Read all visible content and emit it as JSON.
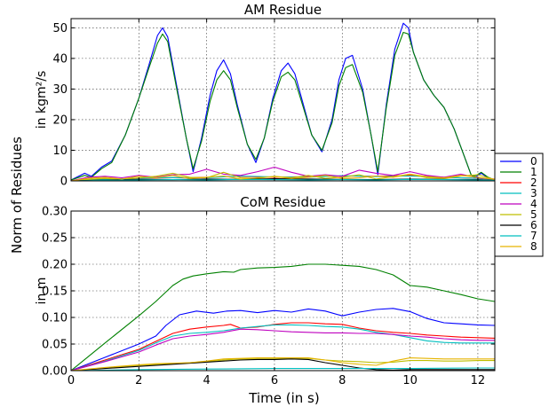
{
  "figure": {
    "ylabel_shared": "Norm of Residues",
    "xlabel": "Time (in s)"
  },
  "chart_data": [
    {
      "type": "line",
      "title": "AM Residue",
      "ylabel": "in kgm²/s",
      "xlim": [
        0,
        12.5
      ],
      "ylim": [
        0,
        53
      ],
      "xticks": [
        0,
        2,
        4,
        6,
        8,
        10,
        12
      ],
      "xtick_labels": [
        "",
        "",
        "",
        "",
        "",
        "",
        ""
      ],
      "yticks": [
        0,
        10,
        20,
        30,
        40,
        50
      ],
      "ytick_labels": [
        "0",
        "10",
        "20",
        "30",
        "40",
        "50"
      ],
      "grid": true,
      "series": [
        {
          "name": "0",
          "color": "#0000ff",
          "x": [
            0,
            0.4,
            0.6,
            0.9,
            1.2,
            1.6,
            2.0,
            2.3,
            2.55,
            2.7,
            2.85,
            3.1,
            3.4,
            3.6,
            3.85,
            4.1,
            4.3,
            4.5,
            4.7,
            4.9,
            5.2,
            5.45,
            5.7,
            5.95,
            6.2,
            6.4,
            6.6,
            6.85,
            7.1,
            7.4,
            7.7,
            7.9,
            8.1,
            8.3,
            8.6,
            8.85,
            9.05,
            9.3,
            9.55,
            9.8,
            9.95,
            10.1,
            10.4,
            10.7,
            11.0,
            11.3,
            11.6,
            11.8,
            11.9,
            12.1,
            12.3,
            12.5
          ],
          "y": [
            0.3,
            2.5,
            1.5,
            4.5,
            6.5,
            15,
            27,
            38,
            47.5,
            50,
            47,
            32,
            14,
            3,
            14,
            28,
            36,
            39.5,
            35,
            25,
            12,
            6,
            14,
            27,
            36,
            38.5,
            35,
            25,
            15,
            9.5,
            20,
            33,
            40,
            41,
            30,
            15,
            2,
            25,
            43,
            51.5,
            50,
            42,
            33,
            28,
            24,
            17,
            8,
            2,
            1,
            2.5,
            1,
            0.3
          ]
        },
        {
          "name": "1",
          "color": "#008000",
          "x": [
            0,
            0.4,
            0.6,
            0.9,
            1.2,
            1.6,
            2.0,
            2.3,
            2.55,
            2.7,
            2.85,
            3.1,
            3.4,
            3.6,
            3.85,
            4.1,
            4.3,
            4.5,
            4.7,
            4.9,
            5.2,
            5.45,
            5.7,
            5.95,
            6.2,
            6.4,
            6.6,
            6.85,
            7.1,
            7.4,
            7.7,
            7.9,
            8.1,
            8.3,
            8.6,
            8.85,
            9.05,
            9.3,
            9.55,
            9.8,
            9.95,
            10.1,
            10.4,
            10.7,
            11.0,
            11.3,
            11.6,
            11.8,
            11.9,
            12.1,
            12.3,
            12.5
          ],
          "y": [
            0.3,
            1.8,
            1.2,
            4.0,
            6.0,
            15,
            27,
            37,
            45,
            48,
            45.5,
            31,
            14,
            4,
            13,
            26,
            33,
            36,
            33,
            24,
            12,
            7,
            14,
            26,
            34,
            35.5,
            33,
            24,
            15,
            10,
            19,
            31,
            37,
            38,
            29,
            15,
            3,
            24,
            41,
            48.5,
            48,
            42,
            33,
            28,
            24,
            17,
            8,
            2,
            1.5,
            2.8,
            1.2,
            0.3
          ]
        },
        {
          "name": "2",
          "color": "#ff0000",
          "x": [
            0,
            1,
            2,
            3,
            4,
            5,
            6,
            7,
            8,
            9,
            10,
            11,
            12,
            12.5
          ],
          "y": [
            0,
            0.6,
            0.8,
            1.0,
            1.2,
            1.5,
            1.2,
            1.4,
            1.6,
            1.5,
            1.8,
            1.2,
            0.8,
            0.6
          ]
        },
        {
          "name": "3",
          "color": "#00bfbf",
          "x": [
            0,
            1,
            2,
            3,
            4,
            5,
            6,
            7,
            8,
            9,
            10,
            11,
            12,
            12.5
          ],
          "y": [
            0,
            0.5,
            0.9,
            1.1,
            1.0,
            1.6,
            1.3,
            1.2,
            1.7,
            1.4,
            1.6,
            1.1,
            0.9,
            0.5
          ]
        },
        {
          "name": "4",
          "color": "#bf00bf",
          "x": [
            0,
            0.5,
            1,
            1.5,
            2,
            2.5,
            3,
            3.5,
            4,
            4.5,
            5,
            5.5,
            6,
            6.5,
            7,
            7.5,
            8,
            8.5,
            9,
            9.5,
            10,
            10.5,
            11,
            11.5,
            12,
            12.5
          ],
          "y": [
            0,
            1.2,
            1.5,
            1.0,
            1.8,
            1.2,
            2.0,
            2.2,
            3.8,
            2.2,
            1.8,
            3.0,
            4.5,
            2.8,
            1.5,
            2.0,
            1.5,
            3.5,
            2.5,
            1.8,
            3.0,
            1.8,
            1.2,
            2.2,
            1.0,
            0.5
          ]
        },
        {
          "name": "5",
          "color": "#bfbf00",
          "x": [
            0,
            0.5,
            1,
            1.5,
            2,
            2.5,
            3,
            3.5,
            4,
            4.5,
            5,
            5.5,
            6,
            6.5,
            7,
            7.5,
            8,
            8.5,
            9,
            9.5,
            10,
            10.5,
            11,
            11.5,
            12,
            12.5
          ],
          "y": [
            0,
            0.5,
            0.8,
            0.4,
            1.0,
            1.5,
            2.5,
            1.2,
            1.0,
            2.8,
            1.0,
            0.8,
            1.5,
            1.0,
            1.8,
            0.8,
            1.2,
            2.0,
            0.6,
            1.4,
            2.2,
            1.0,
            0.8,
            1.6,
            2.0,
            0.4
          ]
        },
        {
          "name": "6",
          "color": "#000000",
          "x": [
            0,
            1,
            2,
            3,
            4,
            5,
            6,
            7,
            8,
            9,
            10,
            11,
            12,
            12.5
          ],
          "y": [
            0,
            0.3,
            0.5,
            0.4,
            0.6,
            0.5,
            0.7,
            0.6,
            0.5,
            0.4,
            0.6,
            0.5,
            0.4,
            0.3
          ]
        },
        {
          "name": "7",
          "color": "#00bfbf",
          "x": [
            0,
            1,
            2,
            3,
            4,
            5,
            6,
            7,
            8,
            9,
            10,
            11,
            12,
            12.5
          ],
          "y": [
            0,
            0.2,
            0.3,
            0.4,
            0.3,
            0.5,
            0.4,
            0.3,
            0.4,
            0.3,
            0.5,
            0.4,
            0.3,
            0.2
          ]
        },
        {
          "name": "8",
          "color": "#e6b400",
          "x": [
            0,
            0.5,
            1,
            1.5,
            2,
            2.5,
            3,
            3.5,
            4,
            4.5,
            5,
            5.5,
            6,
            6.5,
            7,
            7.5,
            8,
            8.5,
            9,
            9.5,
            10,
            10.5,
            11,
            11.5,
            12,
            12.5
          ],
          "y": [
            0,
            0.8,
            1.2,
            0.6,
            1.5,
            1.0,
            1.8,
            0.8,
            1.2,
            1.6,
            0.6,
            1.0,
            1.4,
            0.8,
            1.2,
            1.8,
            0.8,
            1.0,
            1.6,
            1.2,
            2.2,
            1.4,
            1.0,
            1.8,
            1.2,
            0.5
          ]
        }
      ]
    },
    {
      "type": "line",
      "title": "CoM Residue",
      "ylabel": "in m",
      "xlim": [
        0,
        12.5
      ],
      "ylim": [
        0,
        0.3
      ],
      "xticks": [
        0,
        2,
        4,
        6,
        8,
        10,
        12
      ],
      "xtick_labels": [
        "0",
        "2",
        "4",
        "6",
        "8",
        "10",
        "12"
      ],
      "yticks": [
        0,
        0.05,
        0.1,
        0.15,
        0.2,
        0.25,
        0.3
      ],
      "ytick_labels": [
        "0.00",
        "0.05",
        "0.10",
        "0.15",
        "0.20",
        "0.25",
        "0.30"
      ],
      "grid": true,
      "series": [
        {
          "name": "0",
          "color": "#0000ff",
          "x": [
            0,
            1,
            2,
            2.5,
            2.8,
            3.2,
            3.7,
            4.2,
            4.6,
            5,
            5.5,
            6,
            6.5,
            7,
            7.5,
            8,
            8.5,
            9,
            9.5,
            10,
            10.5,
            11,
            11.5,
            12,
            12.5
          ],
          "y": [
            0,
            0.025,
            0.05,
            0.065,
            0.085,
            0.105,
            0.112,
            0.108,
            0.112,
            0.113,
            0.109,
            0.113,
            0.11,
            0.116,
            0.112,
            0.103,
            0.11,
            0.115,
            0.117,
            0.111,
            0.098,
            0.09,
            0.088,
            0.086,
            0.085
          ]
        },
        {
          "name": "1",
          "color": "#008000",
          "x": [
            0,
            1,
            2,
            2.5,
            3,
            3.3,
            3.6,
            4,
            4.5,
            4.8,
            5,
            5.5,
            6,
            6.5,
            7,
            7.5,
            8,
            8.5,
            9,
            9.5,
            10,
            10.5,
            11,
            11.5,
            12,
            12.5
          ],
          "y": [
            0,
            0.052,
            0.103,
            0.13,
            0.16,
            0.172,
            0.178,
            0.182,
            0.186,
            0.185,
            0.19,
            0.193,
            0.194,
            0.196,
            0.2,
            0.2,
            0.198,
            0.196,
            0.19,
            0.18,
            0.16,
            0.157,
            0.15,
            0.143,
            0.135,
            0.13
          ]
        },
        {
          "name": "2",
          "color": "#ff0000",
          "x": [
            0,
            1,
            2,
            2.5,
            3,
            3.5,
            4,
            4.5,
            4.7,
            5,
            5.5,
            6,
            6.5,
            7,
            7.5,
            8,
            8.5,
            9,
            9.5,
            10,
            10.5,
            11,
            11.5,
            12,
            12.5
          ],
          "y": [
            0,
            0.02,
            0.04,
            0.055,
            0.07,
            0.078,
            0.082,
            0.085,
            0.087,
            0.08,
            0.082,
            0.087,
            0.09,
            0.09,
            0.088,
            0.087,
            0.08,
            0.075,
            0.072,
            0.07,
            0.067,
            0.065,
            0.063,
            0.062,
            0.061
          ]
        },
        {
          "name": "3",
          "color": "#00bfbf",
          "x": [
            0,
            1,
            2,
            2.5,
            3,
            3.5,
            4,
            4.5,
            5,
            5.5,
            6,
            6.5,
            7,
            7.5,
            8,
            8.5,
            9,
            9.5,
            10,
            10.5,
            11,
            11.5,
            12,
            12.5
          ],
          "y": [
            0,
            0.018,
            0.038,
            0.052,
            0.065,
            0.07,
            0.072,
            0.075,
            0.08,
            0.083,
            0.086,
            0.086,
            0.085,
            0.083,
            0.082,
            0.078,
            0.072,
            0.068,
            0.062,
            0.056,
            0.053,
            0.052,
            0.052,
            0.052
          ]
        },
        {
          "name": "4",
          "color": "#bf00bf",
          "x": [
            0,
            1,
            2,
            2.5,
            3,
            3.5,
            4,
            4.5,
            5,
            5.5,
            6,
            6.5,
            7,
            7.5,
            8,
            8.5,
            9,
            9.5,
            10,
            10.5,
            11,
            11.5,
            12,
            12.5
          ],
          "y": [
            0,
            0.017,
            0.035,
            0.048,
            0.06,
            0.065,
            0.068,
            0.072,
            0.078,
            0.077,
            0.075,
            0.073,
            0.072,
            0.071,
            0.071,
            0.07,
            0.07,
            0.068,
            0.065,
            0.063,
            0.06,
            0.058,
            0.057,
            0.057
          ]
        },
        {
          "name": "5",
          "color": "#bfbf00",
          "x": [
            0,
            1,
            2,
            2.5,
            3,
            3.5,
            4,
            4.5,
            5,
            5.5,
            6,
            6.5,
            7,
            7.5,
            8,
            8.5,
            9,
            9.5,
            10,
            10.5,
            11,
            11.5,
            12,
            12.5
          ],
          "y": [
            0,
            0.005,
            0.01,
            0.012,
            0.013,
            0.015,
            0.017,
            0.02,
            0.022,
            0.022,
            0.022,
            0.023,
            0.023,
            0.02,
            0.018,
            0.017,
            0.015,
            0.016,
            0.019,
            0.019,
            0.018,
            0.018,
            0.019,
            0.019
          ]
        },
        {
          "name": "6",
          "color": "#000000",
          "x": [
            0,
            1,
            2,
            3,
            4,
            4.5,
            5,
            5.5,
            6,
            6.5,
            7,
            7.5,
            8,
            8.5,
            9,
            9.5,
            10,
            10.5,
            11,
            12,
            12.5
          ],
          "y": [
            0,
            0.004,
            0.008,
            0.012,
            0.016,
            0.018,
            0.02,
            0.021,
            0.021,
            0.022,
            0.021,
            0.015,
            0.01,
            0.005,
            0.002,
            0.001,
            0.002,
            0.002,
            0.002,
            0.002,
            0.002
          ]
        },
        {
          "name": "7",
          "color": "#00bfbf",
          "x": [
            0,
            2,
            4,
            6,
            8,
            10,
            12,
            12.5
          ],
          "y": [
            0,
            0.002,
            0.003,
            0.004,
            0.004,
            0.004,
            0.005,
            0.005
          ]
        },
        {
          "name": "8",
          "color": "#e6b400",
          "x": [
            0,
            1,
            2,
            2.5,
            3,
            3.5,
            4,
            4.5,
            5,
            5.5,
            6,
            6.5,
            7,
            7.5,
            8,
            8.5,
            9,
            9.5,
            10,
            10.5,
            11,
            11.5,
            12,
            12.5
          ],
          "y": [
            0,
            0.006,
            0.011,
            0.013,
            0.014,
            0.015,
            0.018,
            0.022,
            0.023,
            0.024,
            0.024,
            0.024,
            0.024,
            0.02,
            0.015,
            0.012,
            0.01,
            0.018,
            0.024,
            0.023,
            0.022,
            0.022,
            0.022,
            0.022
          ]
        }
      ]
    }
  ]
}
